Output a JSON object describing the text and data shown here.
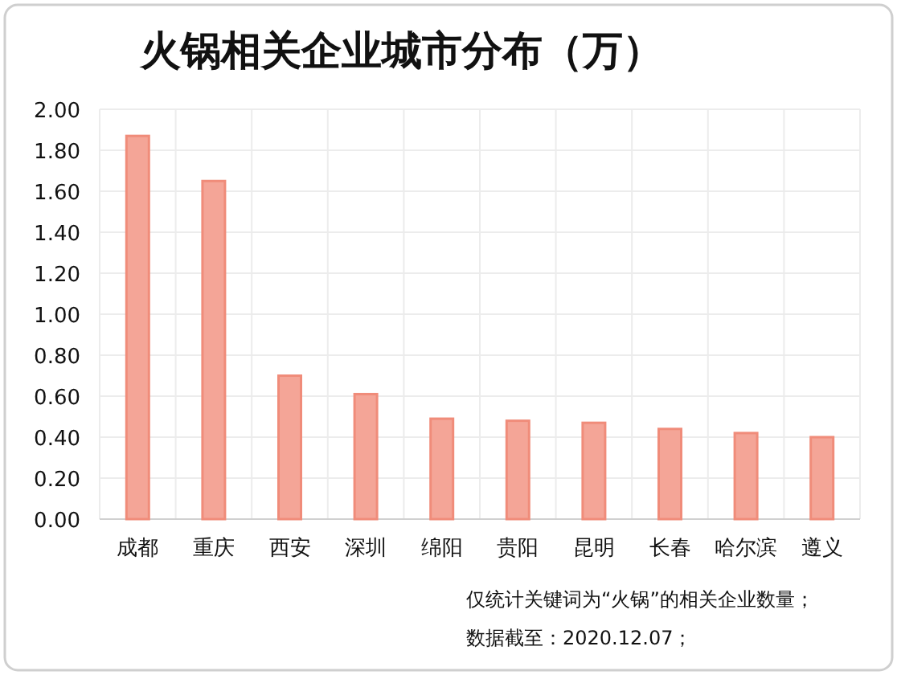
{
  "chart_data": {
    "type": "bar",
    "title": "火锅相关企业城市分布（万）",
    "categories": [
      "成都",
      "重庆",
      "西安",
      "深圳",
      "绵阳",
      "贵阳",
      "昆明",
      "长春",
      "哈尔滨",
      "遵义"
    ],
    "values": [
      1.87,
      1.65,
      0.7,
      0.61,
      0.49,
      0.48,
      0.47,
      0.44,
      0.42,
      0.4
    ],
    "color": "#f4a597",
    "ylim": [
      0,
      2
    ],
    "yticks": [
      {
        "value": 0,
        "label": "0.00"
      },
      {
        "value": 0.2,
        "label": "0.20"
      },
      {
        "value": 0.4,
        "label": "0.40"
      },
      {
        "value": 0.6,
        "label": "0.60"
      },
      {
        "value": 0.8,
        "label": "0.80"
      },
      {
        "value": 1,
        "label": "1.00"
      },
      {
        "value": 1.2,
        "label": "1.20"
      },
      {
        "value": 1.4,
        "label": "1.40"
      },
      {
        "value": 1.6,
        "label": "1.60"
      },
      {
        "value": 1.8,
        "label": "1.80"
      },
      {
        "value": 2,
        "label": "2.00"
      }
    ],
    "grid": true,
    "annotations": [
      "仅统计关键词为“火锅”的相关企业数量；",
      "数据截至：2020.12.07；"
    ]
  }
}
